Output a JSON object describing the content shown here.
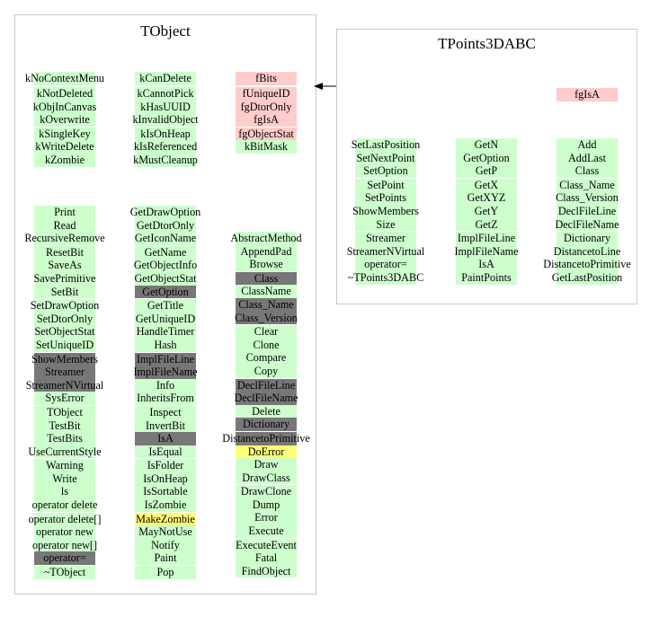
{
  "colors": {
    "g": "#ccffcc",
    "p": "#ffcccc",
    "d": "#777777",
    "y": "#ffff77"
  },
  "tobject": {
    "title": "TObject",
    "attributes": [
      [
        {
          "t": "kNoContextMenu",
          "c": "g"
        }
      ],
      [
        {
          "t": "kCanDelete",
          "c": "g"
        }
      ],
      [
        {
          "t": "fBits",
          "c": "p"
        }
      ]
    ],
    "attributes2": [
      [
        {
          "t": "kNotDeleted",
          "c": "g"
        },
        {
          "t": "kObjInCanvas",
          "c": "g"
        },
        {
          "t": "kOverwrite",
          "c": "g"
        },
        {
          "t": "kSingleKey",
          "c": "g"
        },
        {
          "t": "kWriteDelete",
          "c": "g"
        },
        {
          "t": "kZombie",
          "c": "g"
        }
      ],
      [
        {
          "t": "kCannotPick",
          "c": "g"
        },
        {
          "t": "kHasUUID",
          "c": "g"
        },
        {
          "t": "kInvalidObject",
          "c": "g"
        },
        {
          "t": "kIsOnHeap",
          "c": "g"
        },
        {
          "t": "kIsReferenced",
          "c": "g"
        },
        {
          "t": "kMustCleanup",
          "c": "g"
        }
      ],
      [
        {
          "t": "fUniqueID",
          "c": "p"
        },
        {
          "t": "fgDtorOnly",
          "c": "p"
        },
        {
          "t": "fgIsA",
          "c": "p"
        },
        {
          "t": "fgObjectStat",
          "c": "p"
        },
        {
          "t": "kBitMask",
          "c": "g"
        }
      ]
    ],
    "methods": [
      [
        {
          "t": "Print",
          "c": "g"
        },
        {
          "t": "Read",
          "c": "g"
        },
        {
          "t": "RecursiveRemove",
          "c": "g"
        },
        {
          "t": "ResetBit",
          "c": "g"
        },
        {
          "t": "SaveAs",
          "c": "g"
        },
        {
          "t": "SavePrimitive",
          "c": "g"
        },
        {
          "t": "SetBit",
          "c": "g"
        },
        {
          "t": "SetDrawOption",
          "c": "g"
        },
        {
          "t": "SetDtorOnly",
          "c": "g"
        },
        {
          "t": "SetObjectStat",
          "c": "g"
        },
        {
          "t": "SetUniqueID",
          "c": "g"
        },
        {
          "t": "ShowMembers",
          "c": "d"
        },
        {
          "t": "Streamer",
          "c": "d"
        },
        {
          "t": "StreamerNVirtual",
          "c": "d"
        },
        {
          "t": "SysError",
          "c": "g"
        },
        {
          "t": "TObject",
          "c": "g"
        },
        {
          "t": "TestBit",
          "c": "g"
        },
        {
          "t": "TestBits",
          "c": "g"
        },
        {
          "t": "UseCurrentStyle",
          "c": "g"
        },
        {
          "t": "Warning",
          "c": "g"
        },
        {
          "t": "Write",
          "c": "g"
        },
        {
          "t": "ls",
          "c": "g"
        },
        {
          "t": "operator delete",
          "c": "g"
        },
        {
          "t": "operator delete[]",
          "c": "g"
        },
        {
          "t": "operator new",
          "c": "g"
        },
        {
          "t": "operator new[]",
          "c": "g"
        },
        {
          "t": "operator=",
          "c": "d"
        },
        {
          "t": "~TObject",
          "c": "g"
        }
      ],
      [
        {
          "t": "GetDrawOption",
          "c": "g"
        },
        {
          "t": "GetDtorOnly",
          "c": "g"
        },
        {
          "t": "GetIconName",
          "c": "g"
        },
        {
          "t": "GetName",
          "c": "g"
        },
        {
          "t": "GetObjectInfo",
          "c": "g"
        },
        {
          "t": "GetObjectStat",
          "c": "g"
        },
        {
          "t": "GetOption",
          "c": "d"
        },
        {
          "t": "GetTitle",
          "c": "g"
        },
        {
          "t": "GetUniqueID",
          "c": "g"
        },
        {
          "t": "HandleTimer",
          "c": "g"
        },
        {
          "t": "Hash",
          "c": "g"
        },
        {
          "t": "ImplFileLine",
          "c": "d"
        },
        {
          "t": "ImplFileName",
          "c": "d"
        },
        {
          "t": "Info",
          "c": "g"
        },
        {
          "t": "InheritsFrom",
          "c": "g"
        },
        {
          "t": "Inspect",
          "c": "g"
        },
        {
          "t": "InvertBit",
          "c": "g"
        },
        {
          "t": "IsA",
          "c": "d"
        },
        {
          "t": "IsEqual",
          "c": "g"
        },
        {
          "t": "IsFolder",
          "c": "g"
        },
        {
          "t": "IsOnHeap",
          "c": "g"
        },
        {
          "t": "IsSortable",
          "c": "g"
        },
        {
          "t": "IsZombie",
          "c": "g"
        },
        {
          "t": "MakeZombie",
          "c": "y"
        },
        {
          "t": "MayNotUse",
          "c": "g"
        },
        {
          "t": "Notify",
          "c": "g"
        },
        {
          "t": "Paint",
          "c": "g"
        },
        {
          "t": "Pop",
          "c": "g"
        }
      ],
      [
        {
          "t": "AbstractMethod",
          "c": "g"
        },
        {
          "t": "AppendPad",
          "c": "g"
        },
        {
          "t": "Browse",
          "c": "g"
        },
        {
          "t": "Class",
          "c": "d"
        },
        {
          "t": "ClassName",
          "c": "g"
        },
        {
          "t": "Class_Name",
          "c": "d"
        },
        {
          "t": "Class_Version",
          "c": "d"
        },
        {
          "t": "Clear",
          "c": "g"
        },
        {
          "t": "Clone",
          "c": "g"
        },
        {
          "t": "Compare",
          "c": "g"
        },
        {
          "t": "Copy",
          "c": "g"
        },
        {
          "t": "DeclFileLine",
          "c": "d"
        },
        {
          "t": "DeclFileName",
          "c": "d"
        },
        {
          "t": "Delete",
          "c": "g"
        },
        {
          "t": "Dictionary",
          "c": "d"
        },
        {
          "t": "DistancetoPrimitive",
          "c": "d"
        },
        {
          "t": "DoError",
          "c": "y"
        },
        {
          "t": "Draw",
          "c": "g"
        },
        {
          "t": "DrawClass",
          "c": "g"
        },
        {
          "t": "DrawClone",
          "c": "g"
        },
        {
          "t": "Dump",
          "c": "g"
        },
        {
          "t": "Error",
          "c": "g"
        },
        {
          "t": "Execute",
          "c": "g"
        },
        {
          "t": "ExecuteEvent",
          "c": "g"
        },
        {
          "t": "Fatal",
          "c": "g"
        },
        {
          "t": "FindObject",
          "c": "g"
        }
      ]
    ]
  },
  "tpoints": {
    "title": "TPoints3DABC",
    "attributes": [
      [
        {
          "t": "fgIsA",
          "c": "p"
        }
      ]
    ],
    "methods": [
      [
        {
          "t": "SetLastPosition",
          "c": "g"
        },
        {
          "t": "SetNextPoint",
          "c": "g"
        },
        {
          "t": "SetOption",
          "c": "g"
        },
        {
          "t": "SetPoint",
          "c": "g"
        },
        {
          "t": "SetPoints",
          "c": "g"
        },
        {
          "t": "ShowMembers",
          "c": "g"
        },
        {
          "t": "Size",
          "c": "g"
        },
        {
          "t": "Streamer",
          "c": "g"
        },
        {
          "t": "StreamerNVirtual",
          "c": "g"
        },
        {
          "t": "operator=",
          "c": "g"
        },
        {
          "t": "~TPoints3DABC",
          "c": "g"
        }
      ],
      [
        {
          "t": "GetN",
          "c": "g"
        },
        {
          "t": "GetOption",
          "c": "g"
        },
        {
          "t": "GetP",
          "c": "g"
        },
        {
          "t": "GetX",
          "c": "g"
        },
        {
          "t": "GetXYZ",
          "c": "g"
        },
        {
          "t": "GetY",
          "c": "g"
        },
        {
          "t": "GetZ",
          "c": "g"
        },
        {
          "t": "ImplFileLine",
          "c": "g"
        },
        {
          "t": "ImplFileName",
          "c": "g"
        },
        {
          "t": "IsA",
          "c": "g"
        },
        {
          "t": "PaintPoints",
          "c": "g"
        }
      ],
      [
        {
          "t": "Add",
          "c": "g"
        },
        {
          "t": "AddLast",
          "c": "g"
        },
        {
          "t": "Class",
          "c": "g"
        },
        {
          "t": "Class_Name",
          "c": "g"
        },
        {
          "t": "Class_Version",
          "c": "g"
        },
        {
          "t": "DeclFileLine",
          "c": "g"
        },
        {
          "t": "DeclFileName",
          "c": "g"
        },
        {
          "t": "Dictionary",
          "c": "g"
        },
        {
          "t": "DistancetoLine",
          "c": "g"
        },
        {
          "t": "DistancetoPrimitive",
          "c": "g"
        },
        {
          "t": "GetLastPosition",
          "c": "g"
        }
      ]
    ]
  }
}
